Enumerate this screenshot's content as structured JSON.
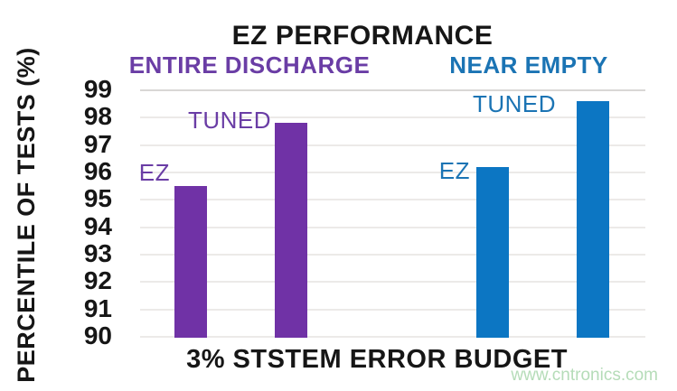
{
  "watermark": {
    "text": "www.cntronics.com",
    "color": "#b5dcb8"
  },
  "chart_data": {
    "type": "bar",
    "title": "EZ PERFORMANCE",
    "xlabel": "3% STSTEM ERROR BUDGET",
    "ylabel": "PERCENTILE OF TESTS (%)",
    "ylim": [
      90,
      99
    ],
    "yticks": [
      99,
      98,
      97,
      96,
      95,
      94,
      93,
      92,
      91,
      90
    ],
    "grid": "horizontal",
    "legend_position": "none",
    "background": "#ffffff",
    "groups": [
      {
        "name": "ENTIRE DISCHARGE",
        "bar_color": "#7032a6",
        "label_color": "#6a3da5",
        "bars": [
          {
            "label": "EZ",
            "value": 95.5
          },
          {
            "label": "TUNED",
            "value": 97.8
          }
        ]
      },
      {
        "name": "NEAR EMPTY",
        "bar_color": "#0c76c3",
        "label_color": "#1b74b4",
        "bars": [
          {
            "label": "EZ",
            "value": 96.2
          },
          {
            "label": "TUNED",
            "value": 98.6
          }
        ]
      }
    ]
  }
}
